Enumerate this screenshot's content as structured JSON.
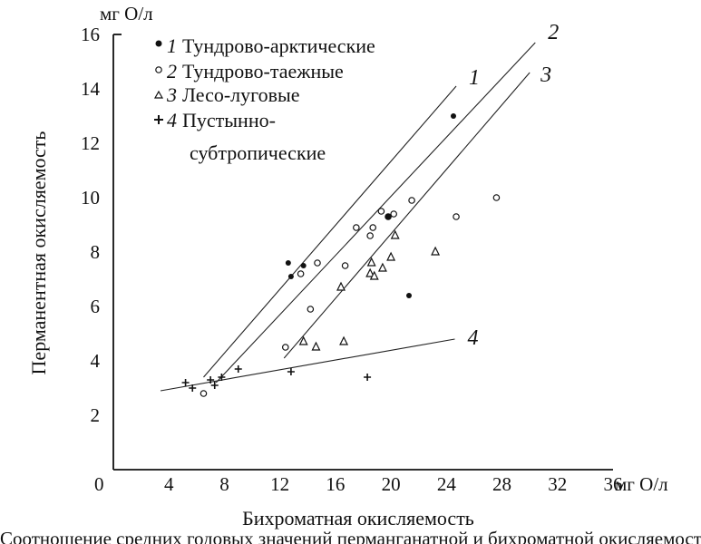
{
  "chart_data": {
    "type": "scatter",
    "x_unit": "мг О/л",
    "y_unit": "мг О/л",
    "xlabel": "Бихроматная окисляемость",
    "ylabel": "Перманентная окисляемость",
    "x_origin_label": "0",
    "xlim": [
      0,
      36
    ],
    "ylim": [
      0,
      16
    ],
    "x_ticks": [
      "4",
      "8",
      "12",
      "16",
      "20",
      "24",
      "28",
      "32",
      "36"
    ],
    "y_ticks": [
      "2",
      "4",
      "6",
      "8",
      "10",
      "12",
      "14",
      "16"
    ],
    "grid": false,
    "legend_placement": "top-left",
    "caption": "Соотношение средних годовых значений перманганатной и бихроматной окисляемости",
    "legend": [
      {
        "num": "1",
        "label": "Тундрово-арктические",
        "marker": "dot"
      },
      {
        "num": "2",
        "label": "Тундрово-таежные",
        "marker": "circle"
      },
      {
        "num": "3",
        "label": "Лесо-луговые",
        "marker": "triangle"
      },
      {
        "num": "4",
        "label": "Пустынно-",
        "label2": "субтропические",
        "marker": "plus"
      }
    ],
    "series": [
      {
        "name": "Тундрово-арктические",
        "marker": "dot",
        "x": [
          12.6,
          12.8,
          13.7,
          21.3,
          24.5
        ],
        "y": [
          7.6,
          7.1,
          7.5,
          6.4,
          13.0
        ]
      },
      {
        "name": "Тундрово-таежные",
        "marker": "circle",
        "x": [
          6.5,
          12.4,
          13.5,
          14.2,
          14.7,
          16.7,
          17.5,
          18.5,
          18.7,
          19.3,
          19.8,
          20.2,
          21.5,
          24.7,
          27.6
        ],
        "y": [
          2.8,
          4.5,
          7.2,
          5.9,
          7.6,
          7.5,
          8.9,
          8.6,
          8.9,
          9.5,
          9.3,
          9.4,
          9.9,
          9.3,
          10.0
        ],
        "filled": [
          false,
          false,
          false,
          false,
          false,
          false,
          false,
          false,
          false,
          false,
          true,
          false,
          false,
          false,
          false
        ]
      },
      {
        "name": "Лесо-луговые",
        "marker": "triangle",
        "x": [
          13.7,
          14.6,
          16.4,
          16.6,
          18.5,
          18.6,
          18.8,
          19.4,
          20.0,
          20.3,
          23.2
        ],
        "y": [
          4.7,
          4.5,
          6.7,
          4.7,
          7.2,
          7.6,
          7.1,
          7.4,
          7.8,
          8.6,
          8.0
        ]
      },
      {
        "name": "Пустынно-субтропические",
        "marker": "plus",
        "x": [
          5.2,
          5.7,
          7.0,
          7.3,
          7.8,
          9.0,
          12.8,
          18.3
        ],
        "y": [
          3.2,
          3.0,
          3.3,
          3.1,
          3.4,
          3.7,
          3.6,
          3.4
        ]
      }
    ],
    "trend_lines": [
      {
        "label": "1",
        "from": [
          6.5,
          3.4
        ],
        "to": [
          24.7,
          14.1
        ]
      },
      {
        "label": "2",
        "from": [
          7.4,
          3.2
        ],
        "to": [
          30.4,
          15.7
        ]
      },
      {
        "label": "3",
        "from": [
          12.3,
          4.1
        ],
        "to": [
          30.0,
          14.6
        ]
      },
      {
        "label": "4",
        "from": [
          3.4,
          2.9
        ],
        "to": [
          24.6,
          4.8
        ]
      }
    ]
  }
}
